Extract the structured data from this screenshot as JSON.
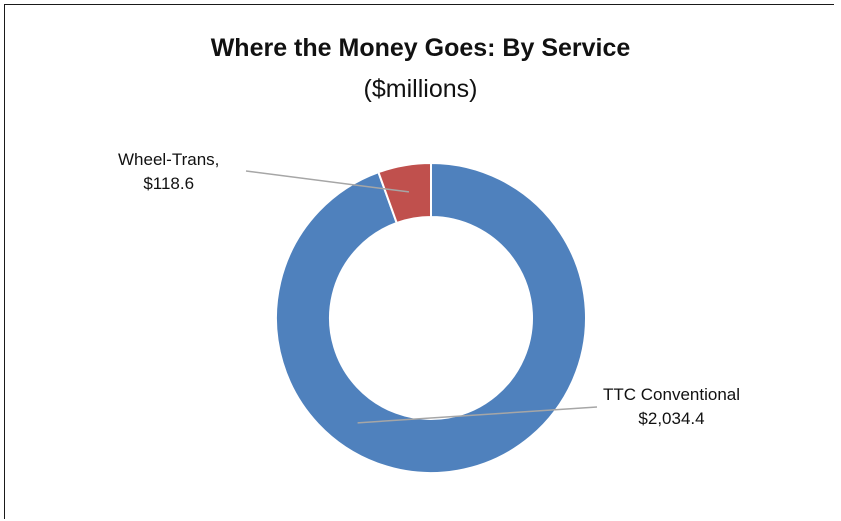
{
  "chart_data": {
    "type": "pie",
    "title": "Where the Money Goes: By Service",
    "subtitle": "($millions)",
    "categories": [
      "TTC Conventional",
      "Wheel-Trans"
    ],
    "values": [
      2034.4,
      118.6
    ],
    "value_labels": [
      "$2,034.4",
      "$118.6"
    ],
    "label_names": [
      "TTC Conventional",
      "Wheel-Trans,"
    ],
    "colors": [
      "#4f81bd",
      "#c0504d"
    ],
    "donut": true,
    "legend": "none"
  }
}
